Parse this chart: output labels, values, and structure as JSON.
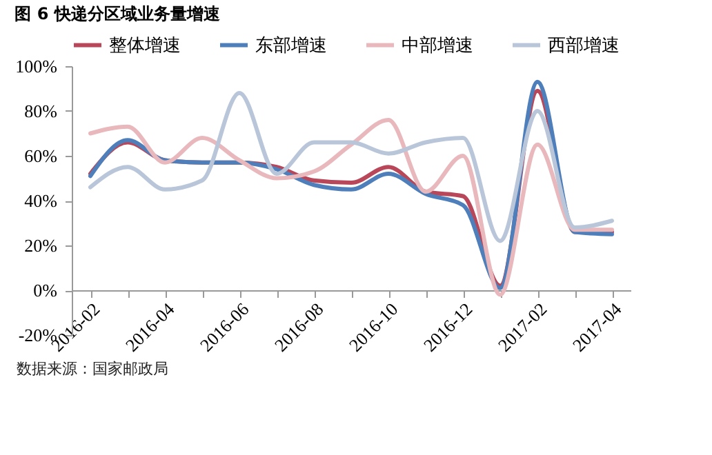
{
  "chart_data": {
    "type": "line",
    "title": "图 6 快递分区域业务量增速",
    "categories": [
      "2016-02",
      null,
      "2016-04",
      null,
      "2016-06",
      null,
      "2016-08",
      null,
      "2016-10",
      null,
      "2016-12",
      null,
      "2017-02",
      null,
      "2017-04"
    ],
    "series": [
      {
        "name": "整体增速",
        "color": "#b8475a",
        "values": [
          52,
          66,
          58,
          57,
          57,
          55,
          49,
          48,
          55,
          44,
          42,
          2,
          89,
          26,
          26
        ]
      },
      {
        "name": "东部增速",
        "color": "#4f7fba",
        "values": [
          51,
          67,
          58,
          57,
          57,
          54,
          47,
          45,
          52,
          43,
          38,
          1,
          93,
          26,
          25
        ]
      },
      {
        "name": "中部增速",
        "color": "#e8b8bc",
        "values": [
          70,
          73,
          57,
          68,
          58,
          50,
          53,
          65,
          76,
          44,
          60,
          -2,
          65,
          27,
          27
        ]
      },
      {
        "name": "西部增速",
        "color": "#b9c6d9",
        "values": [
          46,
          55,
          45,
          49,
          88,
          52,
          66,
          66,
          61,
          66,
          68,
          22,
          80,
          28,
          31
        ]
      }
    ],
    "ylim": [
      -20,
      100
    ],
    "yticks": [
      {
        "value": -20,
        "label": "-20%"
      },
      {
        "value": 0,
        "label": "0%"
      },
      {
        "value": 20,
        "label": "20%"
      },
      {
        "value": 40,
        "label": "40%"
      },
      {
        "value": 60,
        "label": "60%"
      },
      {
        "value": 80,
        "label": "80%"
      },
      {
        "value": 100,
        "label": "100%"
      }
    ],
    "legend": "top",
    "grid": false,
    "annotations": [
      "数据来源：国家邮政局"
    ]
  }
}
